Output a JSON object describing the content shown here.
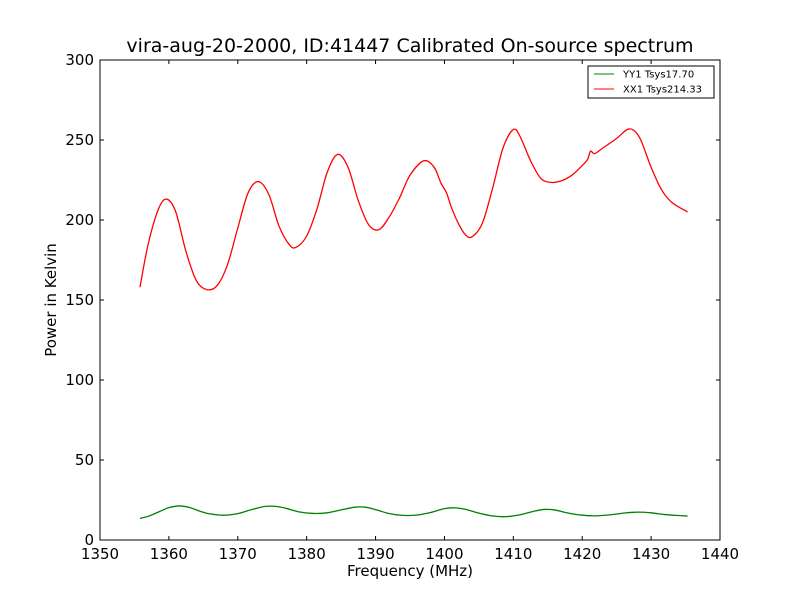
{
  "chart_data": {
    "type": "line",
    "title": "vira-aug-20-2000, ID:41447 Calibrated On-source spectrum",
    "xlabel": "Frequency (MHz)",
    "ylabel": "Power in Kelvin",
    "xlim": [
      1350,
      1440
    ],
    "ylim": [
      0,
      300
    ],
    "xticks": [
      1350,
      1360,
      1370,
      1380,
      1390,
      1400,
      1410,
      1420,
      1430,
      1440
    ],
    "yticks": [
      0,
      50,
      100,
      150,
      200,
      250,
      300
    ],
    "xtick_labels": [
      "1350",
      "1360",
      "1370",
      "1380",
      "1390",
      "1400",
      "1410",
      "1420",
      "1430",
      "1440"
    ],
    "ytick_labels": [
      "0",
      "50",
      "100",
      "150",
      "200",
      "250",
      "300"
    ],
    "grid": false,
    "legend_position": "top-right",
    "series": [
      {
        "name": "YY1 Tsys17.70",
        "color": "#008000",
        "points": [
          [
            1355.8,
            13.5
          ],
          [
            1357,
            14.8
          ],
          [
            1358.5,
            17.5
          ],
          [
            1360,
            20.2
          ],
          [
            1361.5,
            21.3
          ],
          [
            1363,
            20.3
          ],
          [
            1364.5,
            18
          ],
          [
            1366,
            16.3
          ],
          [
            1368,
            15.5
          ],
          [
            1370,
            16.5
          ],
          [
            1372,
            19
          ],
          [
            1374,
            21
          ],
          [
            1375.5,
            21
          ],
          [
            1377,
            19.8
          ],
          [
            1379,
            17.5
          ],
          [
            1381,
            16.6
          ],
          [
            1383,
            17
          ],
          [
            1385,
            18.8
          ],
          [
            1387,
            20.5
          ],
          [
            1388.5,
            20.5
          ],
          [
            1390,
            19
          ],
          [
            1392,
            16.5
          ],
          [
            1394,
            15.4
          ],
          [
            1396,
            15.6
          ],
          [
            1398,
            17.2
          ],
          [
            1400,
            19.6
          ],
          [
            1401.5,
            20.1
          ],
          [
            1403,
            19.2
          ],
          [
            1405,
            16.8
          ],
          [
            1407,
            15
          ],
          [
            1409,
            14.6
          ],
          [
            1411,
            15.8
          ],
          [
            1413,
            18
          ],
          [
            1414.5,
            19.1
          ],
          [
            1416,
            18.8
          ],
          [
            1418,
            16.8
          ],
          [
            1420,
            15.5
          ],
          [
            1422,
            15.1
          ],
          [
            1424,
            15.7
          ],
          [
            1426,
            16.8
          ],
          [
            1428,
            17.4
          ],
          [
            1430,
            17
          ],
          [
            1432,
            15.9
          ],
          [
            1434,
            15.3
          ],
          [
            1435.3,
            15
          ]
        ]
      },
      {
        "name": "XX1 Tsys214.33",
        "color": "#ff0000",
        "points": [
          [
            1355.8,
            158
          ],
          [
            1357,
            185
          ],
          [
            1358.5,
            207
          ],
          [
            1359.7,
            213
          ],
          [
            1361,
            205
          ],
          [
            1362.5,
            180
          ],
          [
            1364,
            162
          ],
          [
            1365.5,
            156.5
          ],
          [
            1367,
            159
          ],
          [
            1368.5,
            172
          ],
          [
            1370,
            195
          ],
          [
            1371.5,
            217
          ],
          [
            1373,
            224
          ],
          [
            1374.5,
            216
          ],
          [
            1376,
            196
          ],
          [
            1377.5,
            184.5
          ],
          [
            1378.5,
            183
          ],
          [
            1380,
            190
          ],
          [
            1381.5,
            207
          ],
          [
            1383,
            230
          ],
          [
            1384.5,
            241
          ],
          [
            1386,
            233
          ],
          [
            1387.5,
            212
          ],
          [
            1389,
            197
          ],
          [
            1390.5,
            194
          ],
          [
            1392,
            202
          ],
          [
            1393.5,
            214
          ],
          [
            1395,
            228
          ],
          [
            1397,
            237
          ],
          [
            1398.5,
            233
          ],
          [
            1399.5,
            223
          ],
          [
            1400.3,
            217
          ],
          [
            1401,
            208
          ],
          [
            1402,
            198
          ],
          [
            1403,
            191
          ],
          [
            1404,
            189.5
          ],
          [
            1405.5,
            198
          ],
          [
            1407,
            220
          ],
          [
            1408.5,
            245
          ],
          [
            1410,
            256.5
          ],
          [
            1411,
            252
          ],
          [
            1412.5,
            237
          ],
          [
            1414,
            226
          ],
          [
            1415.5,
            223.5
          ],
          [
            1417,
            224.5
          ],
          [
            1418.5,
            228
          ],
          [
            1420,
            234
          ],
          [
            1420.8,
            238
          ],
          [
            1421.2,
            243
          ],
          [
            1421.8,
            241.5
          ],
          [
            1423,
            245
          ],
          [
            1425,
            251
          ],
          [
            1426.5,
            256.5
          ],
          [
            1427.5,
            256
          ],
          [
            1428.5,
            250
          ],
          [
            1430,
            233
          ],
          [
            1431.5,
            219
          ],
          [
            1433,
            211
          ],
          [
            1435.3,
            205
          ]
        ]
      }
    ]
  }
}
